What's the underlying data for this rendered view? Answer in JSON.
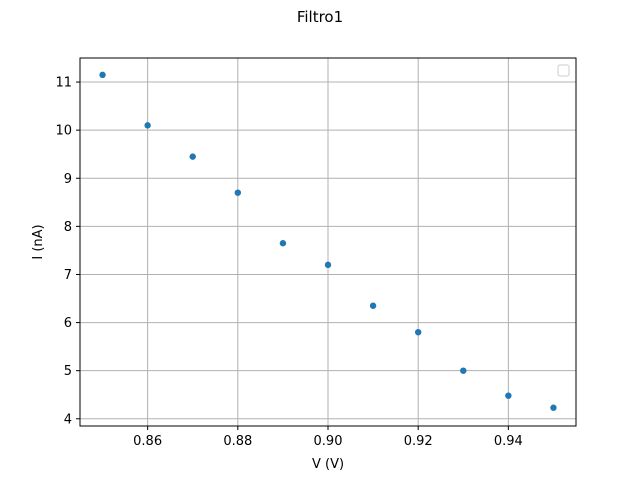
{
  "chart_data": {
    "type": "scatter",
    "title": "Filtro1",
    "xlabel": "V (V)",
    "ylabel": "I (nA)",
    "xlim": [
      0.845,
      0.955
    ],
    "ylim": [
      3.85,
      11.5
    ],
    "xticks": [
      0.86,
      0.88,
      0.9,
      0.92,
      0.94
    ],
    "xtick_labels": [
      "0.86",
      "0.88",
      "0.90",
      "0.92",
      "0.94"
    ],
    "yticks": [
      4,
      5,
      6,
      7,
      8,
      9,
      10,
      11
    ],
    "ytick_labels": [
      "4",
      "5",
      "6",
      "7",
      "8",
      "9",
      "10",
      "11"
    ],
    "grid": true,
    "legend": "top-right",
    "series": [
      {
        "color": "#1f77b4",
        "x": [
          0.85,
          0.86,
          0.87,
          0.88,
          0.89,
          0.9,
          0.91,
          0.92,
          0.93,
          0.94,
          0.95
        ],
        "y": [
          11.15,
          10.1,
          9.45,
          8.7,
          7.65,
          7.2,
          6.35,
          5.8,
          5.0,
          4.48,
          4.23
        ]
      }
    ]
  }
}
